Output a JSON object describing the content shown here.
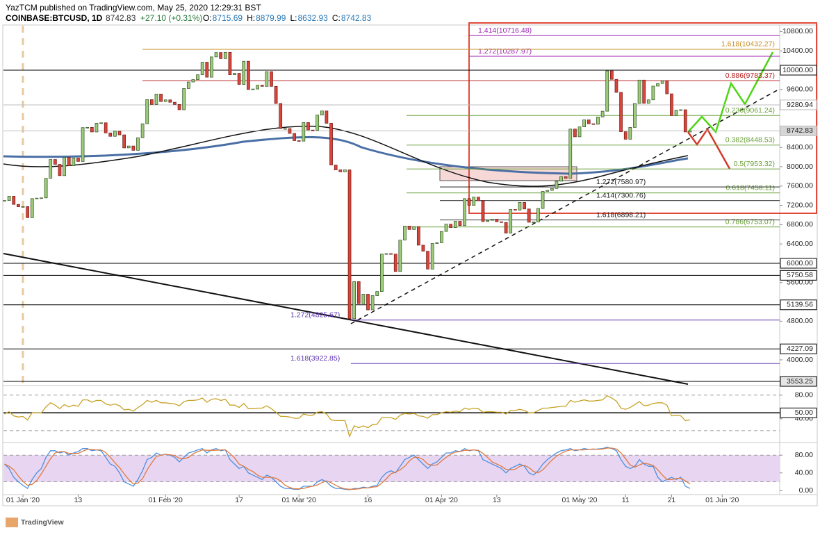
{
  "header": {
    "byline": "YazTCM published on TradingView.com, May 25, 2020 12:29:31 BST",
    "symbol": "COINBASE:BTCUSD, 1D",
    "price": "8742.83",
    "change": "+27.10 (+0.31%)",
    "ohlc": [
      {
        "key": "O:",
        "value": "8715.69"
      },
      {
        "key": "H:",
        "value": "8879.99"
      },
      {
        "key": "L:",
        "value": "8632.93"
      },
      {
        "key": "C:",
        "value": "8742.83"
      }
    ]
  },
  "footer": {
    "brand": "TradingView"
  },
  "chart_data": [
    {
      "type": "candlestick",
      "up_color": "#9ccc7a",
      "down_color": "#d9453b",
      "categories": [
        null,
        null,
        null,
        null,
        "01 Jan '20",
        null,
        null,
        null,
        null,
        null,
        null,
        null,
        null,
        null,
        null,
        null,
        "13",
        null,
        null,
        null,
        null,
        null,
        null,
        null,
        null,
        null,
        null,
        null,
        null,
        null,
        null,
        null,
        null,
        null,
        null,
        "01 Feb '20",
        null,
        null,
        null,
        null,
        null,
        null,
        null,
        null,
        null,
        null,
        null,
        null,
        null,
        null,
        null,
        "17",
        null,
        null,
        null,
        null,
        null,
        null,
        null,
        null,
        null,
        null,
        null,
        null,
        "01 Mar '20",
        null,
        null,
        null,
        null,
        null,
        null,
        null,
        null,
        null,
        null,
        null,
        null,
        null,
        null,
        "16",
        null,
        null,
        null,
        null,
        null,
        null,
        null,
        null,
        null,
        null,
        null,
        null,
        null,
        null,
        null,
        "01 Apr '20",
        null,
        null,
        null,
        null,
        null,
        null,
        null,
        null,
        null,
        null,
        null,
        "13",
        null,
        null,
        null,
        null,
        null,
        null,
        null,
        null,
        null,
        null,
        null,
        null,
        null,
        null,
        null,
        null,
        null,
        "01 May '20",
        null,
        null,
        null,
        null,
        null,
        null,
        null,
        null,
        null,
        "11",
        null,
        null,
        null,
        null,
        null,
        null,
        null,
        null,
        null,
        "21",
        null,
        null,
        null,
        null,
        null,
        null,
        null,
        null,
        null,
        null,
        "01 Jun '20",
        null,
        null,
        null,
        null,
        null,
        null,
        null,
        null,
        null,
        null,
        null,
        null
      ],
      "values": [
        7300,
        7390,
        7220,
        7170,
        7175,
        6945,
        7340,
        7350,
        7355,
        7760,
        8150,
        8050,
        7815,
        8195,
        8020,
        8180,
        8110,
        8810,
        8815,
        8720,
        8900,
        8910,
        8700,
        8630,
        8735,
        8660,
        8390,
        8430,
        8340,
        8600,
        8890,
        9390,
        9290,
        9505,
        9350,
        9385,
        9335,
        9290,
        9180,
        9620,
        9755,
        9805,
        9905,
        10165,
        9855,
        10275,
        10365,
        10240,
        10370,
        9905,
        9935,
        9705,
        10185,
        9600,
        9610,
        9690,
        9665,
        9970,
        9665,
        9310,
        8790,
        8790,
        8690,
        8540,
        8530,
        8915,
        8760,
        8755,
        9070,
        9155,
        8900,
        8035,
        7935,
        7895,
        7935,
        4850,
        5620,
        5165,
        5360,
        5035,
        5330,
        5415,
        6190,
        6200,
        6190,
        5830,
        6480,
        6770,
        6700,
        6760,
        6375,
        6250,
        5880,
        6410,
        6425,
        6660,
        6810,
        6740,
        6870,
        6780,
        7340,
        7200,
        7370,
        7295,
        6865,
        6890,
        6915,
        6860,
        6845,
        6625,
        7115,
        7100,
        7260,
        7125,
        6850,
        6855,
        7135,
        7490,
        7510,
        7550,
        7700,
        7795,
        7760,
        8780,
        8620,
        8825,
        8970,
        8890,
        8880,
        9030,
        9150,
        9985,
        9810,
        9540,
        8725,
        8570,
        8815,
        9310,
        9795,
        9315,
        9385,
        9670,
        9725,
        9780,
        9510,
        9060,
        9170,
        9180,
        8720,
        8742.83,
        null,
        null,
        null,
        null,
        null,
        null,
        null,
        null,
        null,
        null,
        null,
        null,
        null,
        null,
        null,
        null,
        null,
        null,
        null
      ],
      "ylim": [
        3496,
        10921
      ],
      "yticks": [
        {
          "value": 10800,
          "label": "10800.00"
        },
        {
          "value": 10400,
          "label": "10400.00"
        },
        {
          "value": 9600,
          "label": "9600.00"
        },
        {
          "value": 8400,
          "label": "8400.00"
        },
        {
          "value": 8000,
          "label": "8000.00"
        },
        {
          "value": 7600,
          "label": "7600.00"
        },
        {
          "value": 7200,
          "label": "7200.00"
        },
        {
          "value": 6800,
          "label": "6800.00"
        },
        {
          "value": 6400,
          "label": "6400.00"
        },
        {
          "value": 5600,
          "label": "5600.00"
        },
        {
          "value": 4800,
          "label": "4800.00"
        },
        {
          "value": 4000,
          "label": "4000.00"
        }
      ],
      "levels": [
        {
          "value": 10000,
          "label": "10000.00",
          "color": "#000000",
          "box": "#ffffff"
        },
        {
          "value": 9280.94,
          "label": "9280.94",
          "color": "#bdbdbd",
          "box": "#ffffff"
        },
        {
          "value": 8742.83,
          "label": "8742.83",
          "color": "#bdbdbd",
          "box": "#d6d6d6"
        },
        {
          "value": 6000,
          "label": "6000.00",
          "color": "#000000",
          "box": "#ffffff"
        },
        {
          "value": 5750.58,
          "label": "5750.58",
          "color": "#000000",
          "box": "#ffffff"
        },
        {
          "value": 5139.56,
          "label": "5139.56",
          "color": "#000000",
          "box": "#ffffff"
        },
        {
          "value": 4227.09,
          "label": "4227.09",
          "color": "#000000",
          "box": "#ffffff"
        },
        {
          "value": 3553.25,
          "label": "3553.25",
          "color": "#000000",
          "box": "#e6e6e6"
        }
      ],
      "annotations": [
        {
          "text": "1.414(10716.48)",
          "value": 10716.48,
          "color": "#9c27b0"
        },
        {
          "text": "1.272(10287.97)",
          "value": 10287.97,
          "color": "#9c27b0"
        },
        {
          "text": "1.618(10432.27)",
          "value": 10432.27,
          "color": "#c8902a"
        },
        {
          "text": "0.886(9783.37)",
          "value": 9783.37,
          "color": "#b71c1c"
        },
        {
          "text": "0.236(9061.24)",
          "value": 9061.24,
          "color": "#689f38"
        },
        {
          "text": "0.382(8448.53)",
          "value": 8448.53,
          "color": "#689f38"
        },
        {
          "text": "0.5(7953.32)",
          "value": 7953.32,
          "color": "#689f38"
        },
        {
          "text": "0.618(7458.11)",
          "value": 7458.11,
          "color": "#689f38"
        },
        {
          "text": "0.786(6753.07)",
          "value": 6753.07,
          "color": "#689f38"
        },
        {
          "text": "1.272(7580.97)",
          "value": 7580.97,
          "color": "#222222"
        },
        {
          "text": "1.414(7300.76)",
          "value": 7300.76,
          "color": "#222222"
        },
        {
          "text": "1.618(6898.21)",
          "value": 6898.21,
          "color": "#222222"
        },
        {
          "text": "1.272(4825.67)",
          "value": 4825.67,
          "color": "#5e35b1"
        },
        {
          "text": "1.618(3922.85)",
          "value": 3922.85,
          "color": "#5e35b1"
        }
      ]
    },
    {
      "type": "line",
      "color": "#c9a227",
      "ylim": [
        1,
        95
      ],
      "yticks": [
        {
          "value": 80,
          "label": "80.00"
        },
        {
          "value": 40,
          "label": "40.00"
        }
      ],
      "midline": {
        "value": 50,
        "label": "50.00"
      },
      "bands": [
        20,
        80
      ],
      "values": [
        48,
        52,
        45,
        43,
        44,
        38,
        50,
        50,
        50,
        60,
        67,
        63,
        57,
        64,
        60,
        63,
        61,
        72,
        72,
        68,
        71,
        71,
        65,
        63,
        65,
        62,
        55,
        56,
        53,
        59,
        64,
        71,
        68,
        71,
        67,
        67,
        66,
        65,
        62,
        69,
        71,
        71,
        72,
        75,
        68,
        73,
        74,
        71,
        73,
        63,
        63,
        59,
        66,
        57,
        57,
        58,
        58,
        62,
        57,
        51,
        44,
        44,
        43,
        41,
        41,
        48,
        46,
        46,
        51,
        52,
        48,
        38,
        37,
        37,
        37,
        10,
        28,
        25,
        28,
        25,
        30,
        31,
        42,
        42,
        42,
        39,
        46,
        49,
        48,
        49,
        45,
        44,
        41,
        47,
        47,
        50,
        52,
        51,
        53,
        52,
        58,
        56,
        58,
        57,
        51,
        52,
        52,
        51,
        51,
        48,
        54,
        54,
        56,
        54,
        50,
        50,
        54,
        58,
        58,
        59,
        60,
        61,
        61,
        71,
        68,
        70,
        72,
        70,
        70,
        71,
        72,
        79,
        75,
        70,
        58,
        56,
        59,
        64,
        69,
        62,
        63,
        66,
        67,
        67,
        63,
        45,
        46,
        45,
        37,
        38
      ]
    },
    {
      "type": "line",
      "ylim": [
        -9,
        107
      ],
      "yticks": [
        {
          "value": 80,
          "label": "80.00"
        },
        {
          "value": 40,
          "label": "40.00"
        },
        {
          "value": 0,
          "label": "0.00"
        }
      ],
      "bands": [
        20,
        80
      ],
      "band_color": "#e8d5f2",
      "series": [
        {
          "color": "#4a90e2",
          "values": [
            60,
            50,
            30,
            20,
            12,
            5,
            25,
            40,
            50,
            75,
            90,
            90,
            85,
            88,
            80,
            85,
            88,
            95,
            95,
            90,
            92,
            90,
            75,
            60,
            55,
            40,
            20,
            15,
            10,
            25,
            45,
            70,
            75,
            85,
            80,
            82,
            80,
            75,
            65,
            75,
            85,
            88,
            92,
            95,
            85,
            92,
            95,
            90,
            92,
            70,
            60,
            50,
            55,
            40,
            35,
            30,
            25,
            35,
            30,
            20,
            10,
            5,
            5,
            3,
            3,
            10,
            10,
            10,
            20,
            25,
            20,
            10,
            5,
            5,
            3,
            2,
            5,
            5,
            8,
            6,
            10,
            12,
            30,
            40,
            45,
            40,
            55,
            70,
            75,
            80,
            70,
            60,
            50,
            60,
            65,
            75,
            85,
            85,
            90,
            88,
            95,
            90,
            92,
            90,
            70,
            65,
            60,
            55,
            50,
            40,
            50,
            55,
            60,
            55,
            40,
            35,
            45,
            60,
            70,
            78,
            85,
            90,
            92,
            95,
            90,
            92,
            95,
            93,
            93,
            94,
            95,
            98,
            95,
            90,
            70,
            55,
            50,
            55,
            70,
            60,
            55,
            55,
            30,
            20,
            25,
            30,
            25,
            30,
            10,
            5
          ]
        },
        {
          "color": "#e07a3f",
          "values": [
            60,
            55,
            47,
            33,
            21,
            12,
            14,
            23,
            38,
            55,
            72,
            85,
            88,
            88,
            84,
            84,
            84,
            89,
            93,
            93,
            92,
            92,
            86,
            75,
            63,
            52,
            38,
            25,
            15,
            17,
            27,
            47,
            63,
            77,
            80,
            82,
            81,
            79,
            73,
            72,
            75,
            83,
            88,
            92,
            91,
            91,
            91,
            92,
            92,
            84,
            74,
            60,
            55,
            48,
            43,
            35,
            30,
            30,
            30,
            28,
            22,
            12,
            7,
            4,
            4,
            5,
            8,
            10,
            13,
            18,
            22,
            18,
            12,
            7,
            4,
            3,
            3,
            4,
            6,
            6,
            8,
            9,
            17,
            27,
            38,
            42,
            47,
            55,
            67,
            75,
            75,
            70,
            60,
            57,
            58,
            67,
            75,
            82,
            87,
            88,
            91,
            91,
            92,
            91,
            84,
            75,
            65,
            60,
            55,
            48,
            47,
            48,
            55,
            57,
            52,
            43,
            40,
            47,
            58,
            69,
            78,
            84,
            89,
            92,
            92,
            92,
            92,
            93,
            94,
            93,
            94,
            96,
            96,
            94,
            85,
            72,
            58,
            53,
            58,
            62,
            60,
            57,
            47,
            35,
            25,
            25,
            27,
            28,
            22,
            15
          ]
        }
      ]
    }
  ]
}
